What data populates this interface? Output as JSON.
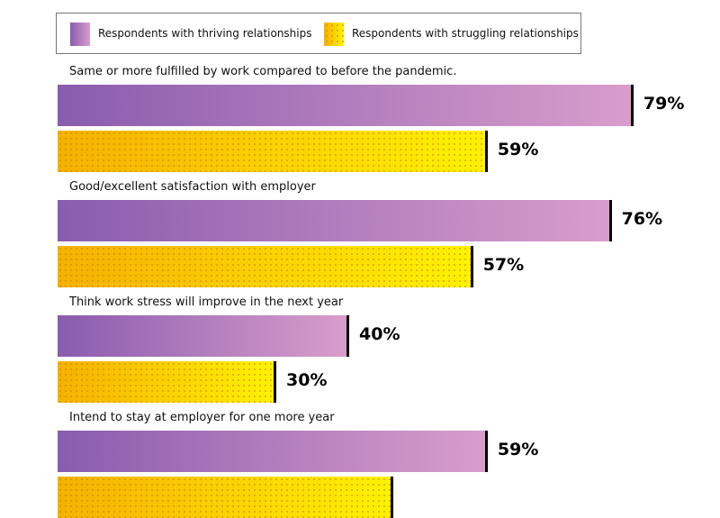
{
  "chart_data": {
    "type": "bar",
    "orientation": "horizontal",
    "legend": [
      "Respondents with thriving relationships",
      "Respondents with struggling relationships"
    ],
    "legend_position": "top",
    "unit": "%",
    "categories": [
      "Same or more fulfilled by work compared to before the pandemic.",
      "Good/excellent satisfaction with employer",
      "Think work stress will improve in the next year",
      "Intend to stay at employer for one more year"
    ],
    "series": [
      {
        "name": "Respondents with thriving relationships",
        "values": [
          79,
          76,
          40,
          59
        ],
        "labels": [
          "79%",
          "76%",
          "40%",
          "59%"
        ]
      },
      {
        "name": "Respondents with struggling relationships",
        "values": [
          59,
          57,
          30,
          46
        ],
        "labels": [
          "59%",
          "57%",
          "30%",
          null
        ]
      }
    ],
    "colors": {
      "thriving": "#8a5cae",
      "struggling": "#f7c000"
    }
  }
}
